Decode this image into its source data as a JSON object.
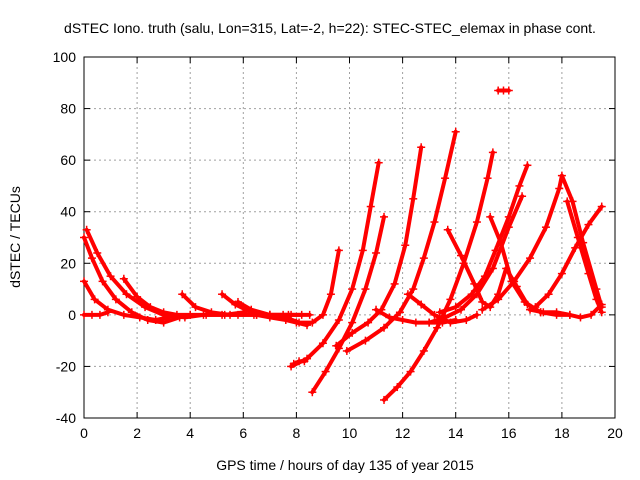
{
  "chart_data": {
    "type": "scatter",
    "title": "dSTEC Iono. truth (salu, Lon=315, Lat=-2, h=22): STEC-STEC_elemax in phase cont.",
    "xlabel": "GPS time / hours of day 135 of year 2015",
    "ylabel": "dSTEC  / TECUs",
    "xlim": [
      0,
      20
    ],
    "ylim": [
      -40,
      100
    ],
    "x_ticks": [
      "0",
      "2",
      "4",
      "6",
      "8",
      "10",
      "12",
      "14",
      "16",
      "18",
      "20"
    ],
    "y_ticks": [
      "-40",
      "-20",
      "0",
      "20",
      "40",
      "60",
      "80",
      "100"
    ],
    "grid": true,
    "marker": "plus",
    "color": "#ff0000",
    "series": [
      {
        "x": [
          0.0,
          0.3,
          0.7,
          1.2,
          1.8,
          2.4,
          3.0,
          3.6,
          4.0
        ],
        "y": [
          30,
          22,
          13,
          6,
          1,
          -2,
          -3,
          -1,
          0
        ]
      },
      {
        "x": [
          0.1,
          0.5,
          1.0,
          1.6,
          2.3,
          3.0,
          3.8,
          4.5,
          5.3,
          6.0
        ],
        "y": [
          33,
          24,
          15,
          8,
          3,
          0,
          -1,
          0,
          0,
          1
        ]
      },
      {
        "x": [
          0.0,
          0.4,
          0.9,
          1.5,
          2.1,
          2.7,
          3.2
        ],
        "y": [
          13,
          6,
          2,
          0,
          -1,
          -2,
          -1
        ]
      },
      {
        "x": [
          0.0,
          0.3,
          0.6,
          0.9
        ],
        "y": [
          0,
          0,
          0,
          1
        ]
      },
      {
        "x": [
          1.5,
          2.0,
          2.5,
          3.0,
          3.5,
          4.0,
          4.6,
          5.2,
          5.8,
          6.4,
          7.0,
          7.8
        ],
        "y": [
          14,
          7,
          3,
          1,
          0,
          0,
          0,
          0,
          0,
          0,
          0,
          0
        ]
      },
      {
        "x": [
          3.7,
          4.2,
          4.8,
          5.5,
          6.5,
          7.5,
          8.2
        ],
        "y": [
          8,
          3,
          1,
          0,
          0,
          0,
          0
        ]
      },
      {
        "x": [
          5.2,
          5.7,
          6.3,
          7.0,
          7.7,
          8.5
        ],
        "y": [
          8,
          4,
          1,
          0,
          0,
          0
        ]
      },
      {
        "x": [
          5.8,
          6.3,
          7.0,
          7.6,
          8.1,
          8.6,
          9.0,
          9.3,
          9.6
        ],
        "y": [
          5,
          2,
          0,
          -1,
          -3,
          -3,
          0,
          8,
          25
        ]
      },
      {
        "x": [
          6.5,
          7.0,
          7.6,
          8.0,
          8.4
        ],
        "y": [
          0,
          -1,
          -2,
          -3,
          -4
        ]
      },
      {
        "x": [
          7.8,
          8.4,
          9.0,
          9.6,
          10.1,
          10.5,
          10.8,
          11.1
        ],
        "y": [
          -20,
          -17,
          -11,
          -2,
          10,
          25,
          42,
          59
        ]
      },
      {
        "x": [
          7.9,
          8.1,
          8.3
        ],
        "y": [
          -19,
          -18,
          -18
        ]
      },
      {
        "x": [
          8.6,
          9.1,
          9.6,
          10.1,
          10.6,
          11.0,
          11.3
        ],
        "y": [
          -30,
          -22,
          -13,
          -3,
          10,
          24,
          38
        ]
      },
      {
        "x": [
          9.5,
          10.1,
          10.7,
          11.2,
          11.7,
          12.1,
          12.4,
          12.7
        ],
        "y": [
          -12,
          -7,
          -3,
          2,
          12,
          27,
          45,
          65
        ]
      },
      {
        "x": [
          9.9,
          10.6,
          11.3,
          11.9,
          12.4,
          12.8,
          13.2,
          13.6,
          14.0
        ],
        "y": [
          -14,
          -10,
          -5,
          1,
          10,
          22,
          36,
          53,
          71
        ]
      },
      {
        "x": [
          11.3,
          11.8,
          12.3,
          12.8,
          13.3,
          13.8,
          14.3,
          14.8,
          15.2,
          15.4
        ],
        "y": [
          -33,
          -28,
          -22,
          -14,
          -5,
          6,
          20,
          36,
          53,
          63
        ]
      },
      {
        "x": [
          11.0,
          11.5,
          12.0,
          12.5,
          13.0,
          13.5,
          14.0
        ],
        "y": [
          2,
          -1,
          -2,
          -3,
          -3,
          -3,
          -2
        ]
      },
      {
        "x": [
          12.2,
          12.7,
          13.2,
          13.8,
          14.4,
          14.8
        ],
        "y": [
          8,
          4,
          0,
          -3,
          -2,
          0
        ]
      },
      {
        "x": [
          13.0,
          13.6,
          14.2,
          14.8,
          15.4,
          16.0,
          16.5
        ],
        "y": [
          -3,
          -1,
          2,
          8,
          18,
          34,
          46
        ]
      },
      {
        "x": [
          13.4,
          14.0,
          14.6,
          15.1,
          15.5,
          16.0,
          16.4,
          16.7
        ],
        "y": [
          1,
          3,
          8,
          15,
          25,
          38,
          50,
          58
        ]
      },
      {
        "x": [
          13.7,
          14.2,
          14.7,
          15.0,
          15.3,
          15.6,
          15.9,
          16.3,
          16.7,
          17.2,
          17.8,
          18.3
        ],
        "y": [
          33,
          23,
          12,
          5,
          3,
          8,
          18,
          11,
          4,
          1,
          0,
          0
        ]
      },
      {
        "x": [
          15.3,
          15.7,
          16.1,
          16.6,
          17.2
        ],
        "y": [
          38,
          28,
          13,
          5,
          1
        ]
      },
      {
        "x": [
          15.6,
          15.8,
          16.0
        ],
        "y": [
          87,
          87,
          87
        ]
      },
      {
        "x": [
          15.0,
          15.6,
          16.2,
          16.8,
          17.4,
          17.9,
          18.0,
          18.4,
          18.8,
          19.3,
          19.5
        ],
        "y": [
          2,
          6,
          13,
          22,
          34,
          49,
          54,
          44,
          28,
          10,
          3
        ]
      },
      {
        "x": [
          16.8,
          17.3,
          17.8,
          18.3,
          18.7,
          19.1,
          19.5
        ],
        "y": [
          2,
          1,
          1,
          0,
          -1,
          0,
          4
        ]
      },
      {
        "x": [
          17.0,
          17.5,
          18.0,
          18.5,
          19.0,
          19.5
        ],
        "y": [
          3,
          8,
          16,
          26,
          35,
          42
        ]
      },
      {
        "x": [
          18.2,
          18.6,
          19.0,
          19.3,
          19.5
        ],
        "y": [
          44,
          30,
          16,
          6,
          1
        ]
      }
    ]
  }
}
